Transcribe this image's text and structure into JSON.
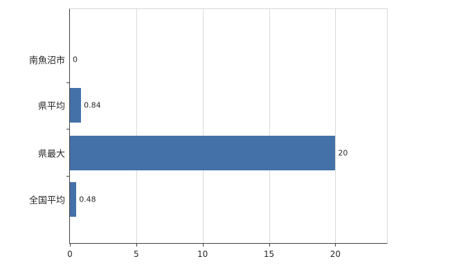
{
  "chart_data": {
    "type": "bar",
    "orientation": "horizontal",
    "categories": [
      "南魚沼市",
      "県平均",
      "県最大",
      "全国平均"
    ],
    "values": [
      0,
      0.84,
      20,
      0.48
    ],
    "value_labels": [
      "0",
      "0.84",
      "20",
      "0.48"
    ],
    "x_ticks": [
      0,
      5,
      10,
      15,
      20
    ],
    "xlim": [
      0,
      24
    ],
    "bar_color": "#4472a8",
    "grid": true,
    "legend": "none",
    "background_color": "#ffffff"
  }
}
